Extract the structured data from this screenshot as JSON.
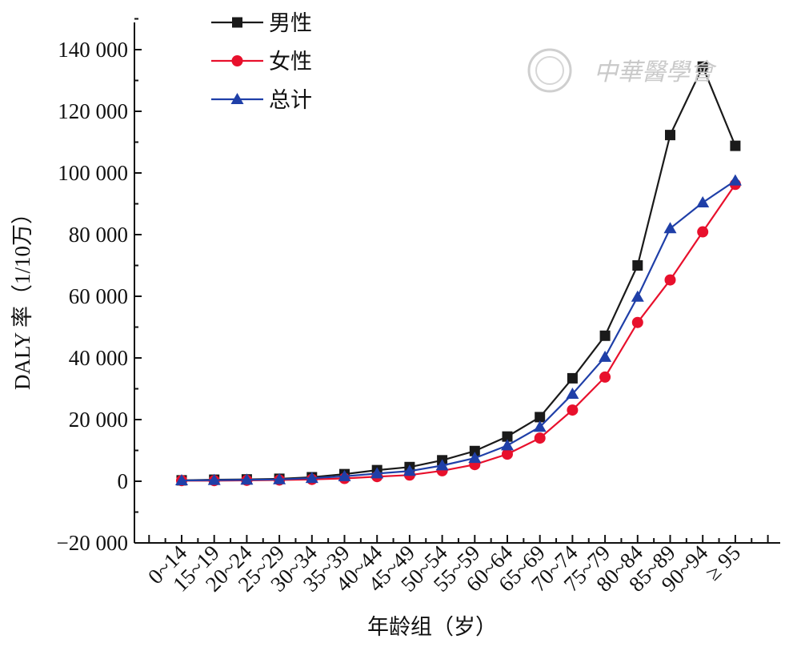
{
  "chart_data": {
    "type": "line",
    "xlabel": "年龄组（岁）",
    "ylabel": "DALY 率（1/10万）",
    "ylim": [
      -20000,
      140000
    ],
    "yticks": [
      -20000,
      0,
      20000,
      40000,
      60000,
      80000,
      100000,
      120000,
      140000
    ],
    "ytick_labels": [
      "−20 000",
      "0",
      "20 000",
      "40 000",
      "60 000",
      "80 000",
      "100 000",
      "120 000",
      "140 000"
    ],
    "categories": [
      "0~14",
      "15~19",
      "20~24",
      "25~29",
      "30~34",
      "35~39",
      "40~44",
      "45~49",
      "50~54",
      "55~59",
      "60~64",
      "65~69",
      "70~74",
      "75~79",
      "80~84",
      "85~89",
      "90~94",
      "≥ 95"
    ],
    "legend_position": "top-left",
    "grid": false,
    "series": [
      {
        "name": "男性",
        "color": "#1a1a1a",
        "marker": "square",
        "values": [
          300,
          500,
          600,
          800,
          1300,
          2300,
          3600,
          4600,
          6800,
          9800,
          14500,
          20800,
          33400,
          47200,
          70000,
          112300,
          134500,
          108800
        ]
      },
      {
        "name": "女性",
        "color": "#e8102c",
        "marker": "circle",
        "values": [
          200,
          200,
          300,
          400,
          600,
          900,
          1500,
          2000,
          3400,
          5400,
          8800,
          14000,
          23100,
          33800,
          51500,
          65300,
          80900,
          96300
        ]
      },
      {
        "name": "总计",
        "color": "#1f3fa8",
        "marker": "triangle",
        "values": [
          250,
          350,
          450,
          600,
          1000,
          1600,
          2500,
          3300,
          5100,
          7500,
          11600,
          17600,
          28300,
          40300,
          59800,
          82000,
          90400,
          97500
        ]
      }
    ]
  },
  "watermark": {
    "text": "中華醫學會"
  }
}
